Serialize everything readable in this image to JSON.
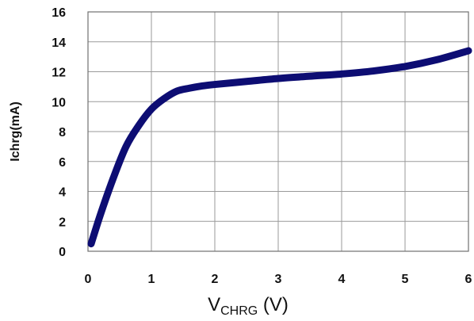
{
  "chart_data": {
    "type": "line",
    "xlabel_main": "V",
    "xlabel_sub": "CHRG",
    "xlabel_unit": " (V)",
    "ylabel": "Ichrg(mA)",
    "xlim": [
      0,
      6
    ],
    "ylim": [
      0,
      16
    ],
    "x_ticks": [
      "0",
      "1",
      "2",
      "3",
      "4",
      "5",
      "6"
    ],
    "y_ticks": [
      "0",
      "2",
      "4",
      "6",
      "8",
      "10",
      "12",
      "14",
      "16"
    ],
    "grid": true,
    "line_color": "#0d0d73",
    "series": [
      {
        "x": [
          0.05,
          0.2,
          0.4,
          0.6,
          0.8,
          1.0,
          1.2,
          1.4,
          1.6,
          1.8,
          2.0,
          2.5,
          3.0,
          3.5,
          4.0,
          4.5,
          5.0,
          5.5,
          6.0
        ],
        "y": [
          0.5,
          2.5,
          4.9,
          7.0,
          8.4,
          9.5,
          10.2,
          10.7,
          10.9,
          11.05,
          11.15,
          11.35,
          11.55,
          11.7,
          11.85,
          12.05,
          12.35,
          12.8,
          13.4
        ]
      }
    ]
  }
}
